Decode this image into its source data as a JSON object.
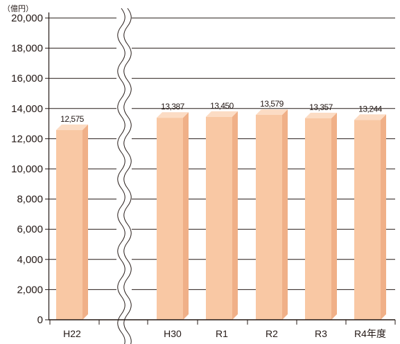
{
  "chart_data": {
    "type": "bar",
    "unit": "（億円）",
    "categories": [
      "H22",
      "H30",
      "R1",
      "R2",
      "R3",
      "R4年度"
    ],
    "values": [
      12575,
      13387,
      13450,
      13579,
      13357,
      13244
    ],
    "value_labels": [
      "12,575",
      "13,387",
      "13,450",
      "13,579",
      "13,357",
      "13,244"
    ],
    "ylim": [
      0,
      20000
    ],
    "y_ticks": [
      0,
      2000,
      4000,
      6000,
      8000,
      10000,
      12000,
      14000,
      16000,
      18000,
      20000
    ],
    "y_tick_labels": [
      "0",
      "2,000",
      "4,000",
      "6,000",
      "8,000",
      "10,000",
      "12,000",
      "14,000",
      "16,000",
      "18,000",
      "20,000"
    ],
    "grid": true,
    "axis_break": "between H22 and H30",
    "bar_color": "#f9c8a4",
    "bar_side_color": "#f0b088",
    "bar_top_color": "#fcdcc4"
  }
}
